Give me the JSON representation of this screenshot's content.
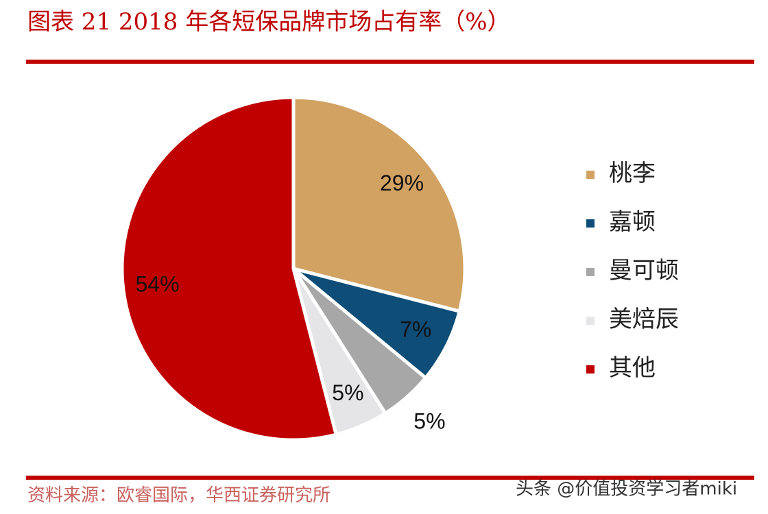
{
  "chart_data": {
    "type": "pie",
    "title": "图表 21   2018 年各短保品牌市场占有率（%）",
    "categories": [
      "桃李",
      "嘉顿",
      "曼可顿",
      "美焙辰",
      "其他"
    ],
    "values": [
      29,
      7,
      5,
      5,
      54
    ],
    "value_labels": [
      "29%",
      "7%",
      "5%",
      "5%",
      "54%"
    ],
    "colors": [
      "#D2A262",
      "#0D4D78",
      "#A8A7A8",
      "#E5E5E8",
      "#C00000"
    ],
    "source": "资料来源：欧睿国际，华西证券研究所",
    "watermark": "头条 @价值投资学习者miki"
  }
}
